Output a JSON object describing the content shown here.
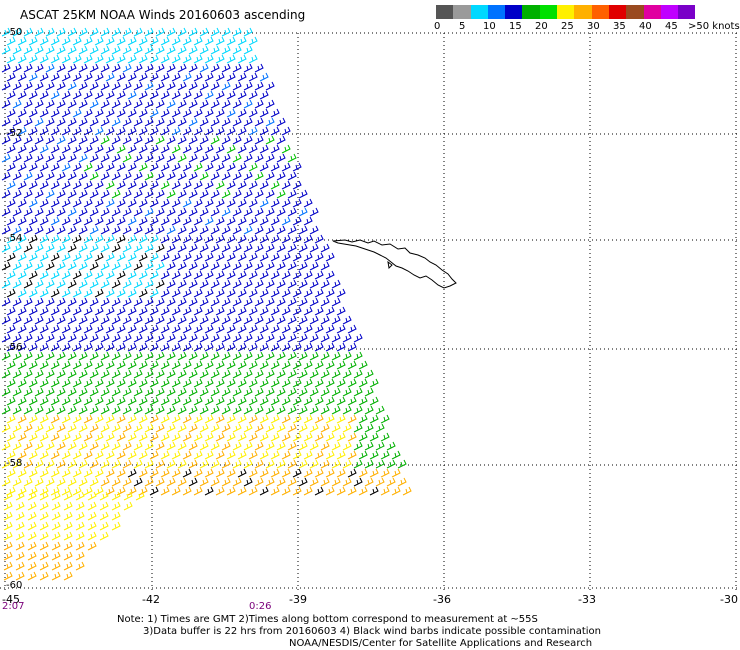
{
  "title": "ASCAT 25KM NOAA Winds 20160603 ascending",
  "colorbar": {
    "colors": [
      "#555555",
      "#9a9a9a",
      "#00d8ff",
      "#0072ff",
      "#0000c8",
      "#00b000",
      "#00e000",
      "#fff000",
      "#ffb000",
      "#ff6000",
      "#e00000",
      "#9a4a20",
      "#e000a0",
      "#c000ff",
      "#7a00c8"
    ],
    "labels": [
      "0",
      "5",
      "10",
      "15",
      "20",
      "25",
      "30",
      "35",
      "40",
      "45",
      ">50 knots"
    ]
  },
  "lat_labels": [
    "-50",
    "-52",
    "-54",
    "-56",
    "-58",
    "-60"
  ],
  "lon_labels": [
    "-45",
    "-42",
    "-39",
    "-36",
    "-33",
    "-30"
  ],
  "time_labels": [
    "2:07",
    "0:26"
  ],
  "notes": {
    "line1": "Note: 1) Times are GMT 2)Times along bottom correspond to measurement at ~55S",
    "line2": "3)Data buffer is 22 hrs from 20160603 4) Black wind barbs indicate possible contamination",
    "line3": "NOAA/NESDIS/Center for Satellite Applications and Research"
  }
}
